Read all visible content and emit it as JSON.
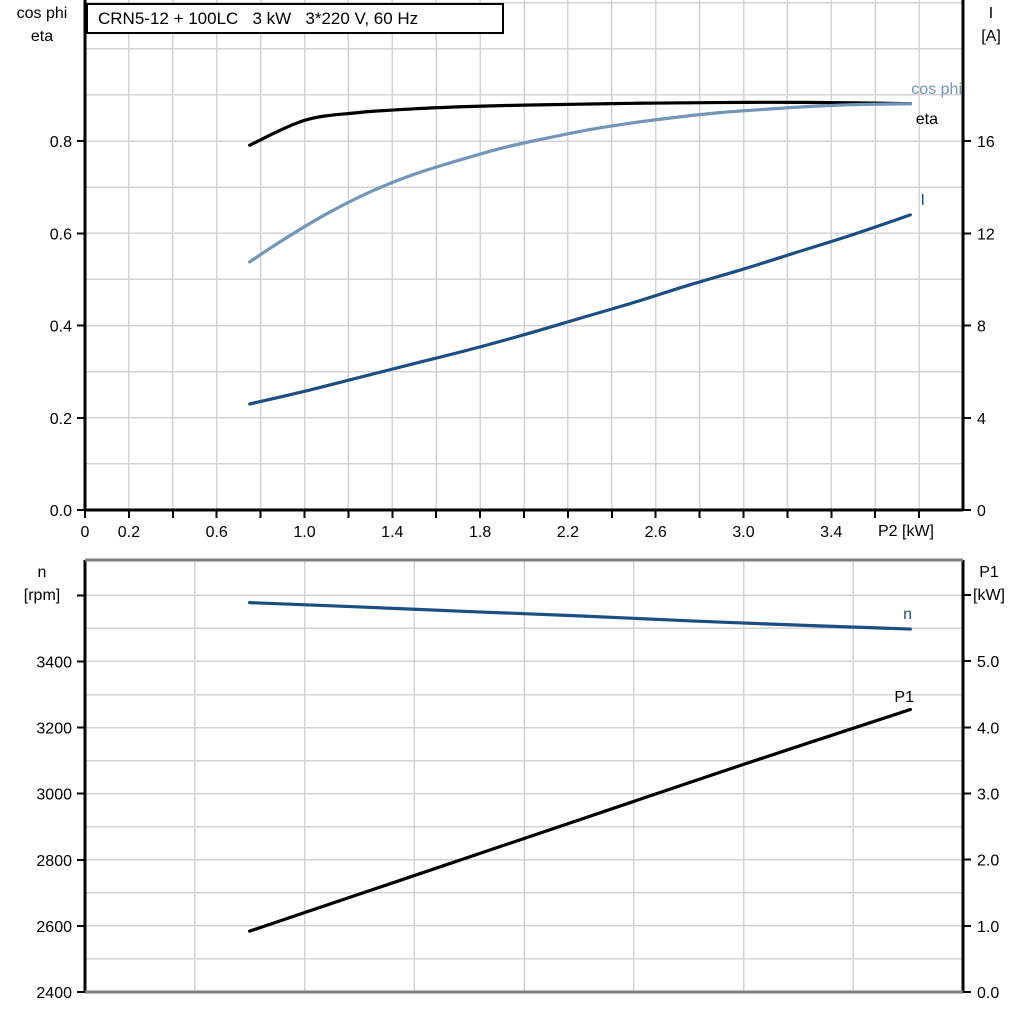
{
  "title": "CRN5-12 + 100LC   3 kW   3*220 V, 60 Hz",
  "colors": {
    "axis": "#000000",
    "frame_gray": "#808080",
    "grid": "#d4d4d4",
    "cos_phi": "#7295ba",
    "eta": "#000000",
    "current": "#1b4e82",
    "speed": "#1b4e82",
    "p1": "#000000"
  },
  "top_chart": {
    "left_axis_label_line1": "cos phi",
    "left_axis_label_line2": "eta",
    "right_axis_label_line1": "I",
    "right_axis_label_line2": "[A]",
    "x_axis_label": "P2 [kW]",
    "curve_labels": {
      "cos_phi": "cos phi",
      "eta": "eta",
      "current": "I"
    }
  },
  "bottom_chart": {
    "left_axis_label_line1": "n",
    "left_axis_label_line2": "[rpm]",
    "right_axis_label_line1": "P1",
    "right_axis_label_line2": "[kW]",
    "curve_labels": {
      "speed": "n",
      "p1": "P1"
    }
  },
  "chart_data": [
    {
      "type": "line",
      "title": "CRN5-12 + 100LC   3 kW   3*220 V, 60 Hz",
      "xlabel": "P2 [kW]",
      "ylabel_left": "cos phi / eta",
      "ylabel_right": "I [A]",
      "xlim": [
        0,
        4.0
      ],
      "ylim_left": [
        0,
        1.106
      ],
      "ylim_right": [
        0,
        22.12
      ],
      "grid": true,
      "grid_x": [
        0.2,
        0.4,
        0.6,
        0.8,
        1.0,
        1.2,
        1.4,
        1.6,
        1.8,
        2.0,
        2.2,
        2.4,
        2.6,
        2.8,
        3.0,
        3.2,
        3.4,
        3.6,
        3.8
      ],
      "grid_y": [
        0.1,
        0.2,
        0.3,
        0.4,
        0.5,
        0.6,
        0.7,
        0.8,
        0.9,
        1.0,
        1.1
      ],
      "x_ticks": [
        0,
        0.2,
        0.4,
        0.6,
        0.8,
        1.0,
        1.2,
        1.4,
        1.6,
        1.8,
        2.0,
        2.2,
        2.4,
        2.6,
        2.8,
        3.0,
        3.2,
        3.4,
        3.6,
        3.8
      ],
      "x_tick_labels": [
        {
          "v": 0,
          "t": "0"
        },
        {
          "v": 0.2,
          "t": "0.2"
        },
        {
          "v": 0.6,
          "t": "0.6"
        },
        {
          "v": 1.0,
          "t": "1.0"
        },
        {
          "v": 1.4,
          "t": "1.4"
        },
        {
          "v": 1.8,
          "t": "1.8"
        },
        {
          "v": 2.2,
          "t": "2.2"
        },
        {
          "v": 2.6,
          "t": "2.6"
        },
        {
          "v": 3.0,
          "t": "3.0"
        },
        {
          "v": 3.4,
          "t": "3.4"
        }
      ],
      "left_ticks": [
        {
          "v": 0.0,
          "t": "0.0"
        },
        {
          "v": 0.2,
          "t": "0.2"
        },
        {
          "v": 0.4,
          "t": "0.4"
        },
        {
          "v": 0.6,
          "t": "0.6"
        },
        {
          "v": 0.8,
          "t": "0.8"
        }
      ],
      "right_ticks": [
        {
          "v": 0,
          "t": "0"
        },
        {
          "v": 4,
          "t": "4"
        },
        {
          "v": 8,
          "t": "8"
        },
        {
          "v": 12,
          "t": "12"
        },
        {
          "v": 16,
          "t": "16"
        }
      ],
      "series": [
        {
          "name": "eta",
          "axis": "left",
          "color": "#000000",
          "points": [
            [
              0.75,
              0.791
            ],
            [
              1.0,
              0.845
            ],
            [
              1.25,
              0.862
            ],
            [
              1.5,
              0.87
            ],
            [
              1.75,
              0.875
            ],
            [
              2.0,
              0.878
            ],
            [
              2.25,
              0.88
            ],
            [
              2.5,
              0.882
            ],
            [
              2.75,
              0.883
            ],
            [
              3.0,
              0.884
            ],
            [
              3.25,
              0.884
            ],
            [
              3.5,
              0.883
            ],
            [
              3.76,
              0.881
            ]
          ]
        },
        {
          "name": "cos phi",
          "axis": "left",
          "color": "#7295ba",
          "points": [
            [
              0.75,
              0.538
            ],
            [
              0.9,
              0.585
            ],
            [
              1.1,
              0.642
            ],
            [
              1.3,
              0.69
            ],
            [
              1.5,
              0.728
            ],
            [
              1.7,
              0.758
            ],
            [
              1.9,
              0.785
            ],
            [
              2.1,
              0.806
            ],
            [
              2.3,
              0.825
            ],
            [
              2.5,
              0.84
            ],
            [
              2.7,
              0.852
            ],
            [
              2.9,
              0.862
            ],
            [
              3.1,
              0.869
            ],
            [
              3.3,
              0.875
            ],
            [
              3.5,
              0.879
            ],
            [
              3.76,
              0.881
            ]
          ]
        },
        {
          "name": "I",
          "axis": "right",
          "color": "#1b4e82",
          "points": [
            [
              0.75,
              4.6
            ],
            [
              1.0,
              5.15
            ],
            [
              1.25,
              5.75
            ],
            [
              1.5,
              6.35
            ],
            [
              1.75,
              6.95
            ],
            [
              2.0,
              7.6
            ],
            [
              2.25,
              8.3
            ],
            [
              2.5,
              9.0
            ],
            [
              2.75,
              9.75
            ],
            [
              3.0,
              10.45
            ],
            [
              3.25,
              11.2
            ],
            [
              3.5,
              11.95
            ],
            [
              3.76,
              12.8
            ]
          ]
        }
      ]
    },
    {
      "type": "line",
      "title": "",
      "xlabel": "",
      "ylabel_left": "n [rpm]",
      "ylabel_right": "P1 [kW]",
      "xlim": [
        0,
        4.0
      ],
      "ylim_left": [
        2400,
        3707
      ],
      "ylim_right": [
        0,
        6.53
      ],
      "grid": true,
      "grid_x": [
        0.5,
        1.0,
        1.5,
        2.0,
        2.5,
        3.0,
        3.5
      ],
      "grid_y": [
        2500,
        2600,
        2700,
        2800,
        2900,
        3000,
        3100,
        3200,
        3300,
        3400,
        3500,
        3600
      ],
      "x_ticks": [],
      "x_tick_labels": [],
      "left_ticks": [
        {
          "v": 2400,
          "t": "2400"
        },
        {
          "v": 2600,
          "t": "2600"
        },
        {
          "v": 2800,
          "t": "2800"
        },
        {
          "v": 3000,
          "t": "3000"
        },
        {
          "v": 3200,
          "t": "3200"
        },
        {
          "v": 3400,
          "t": "3400"
        },
        {
          "v": 3600,
          "t": ""
        }
      ],
      "right_ticks": [
        {
          "v": 0,
          "t": "0.0"
        },
        {
          "v": 1,
          "t": "1.0"
        },
        {
          "v": 2,
          "t": "2.0"
        },
        {
          "v": 3,
          "t": "3.0"
        },
        {
          "v": 4,
          "t": "4.0"
        },
        {
          "v": 5,
          "t": "5.0"
        },
        {
          "v": 6,
          "t": ""
        }
      ],
      "series": [
        {
          "name": "n",
          "axis": "left",
          "color": "#1b4e82",
          "points": [
            [
              0.75,
              3578
            ],
            [
              1.25,
              3565
            ],
            [
              1.75,
              3551
            ],
            [
              2.25,
              3538
            ],
            [
              2.75,
              3523
            ],
            [
              3.25,
              3510
            ],
            [
              3.76,
              3498
            ]
          ]
        },
        {
          "name": "P1",
          "axis": "right",
          "color": "#000000",
          "points": [
            [
              0.75,
              0.92
            ],
            [
              1.5,
              1.76
            ],
            [
              2.25,
              2.6
            ],
            [
              3.0,
              3.44
            ],
            [
              3.76,
              4.27
            ]
          ]
        }
      ]
    }
  ]
}
